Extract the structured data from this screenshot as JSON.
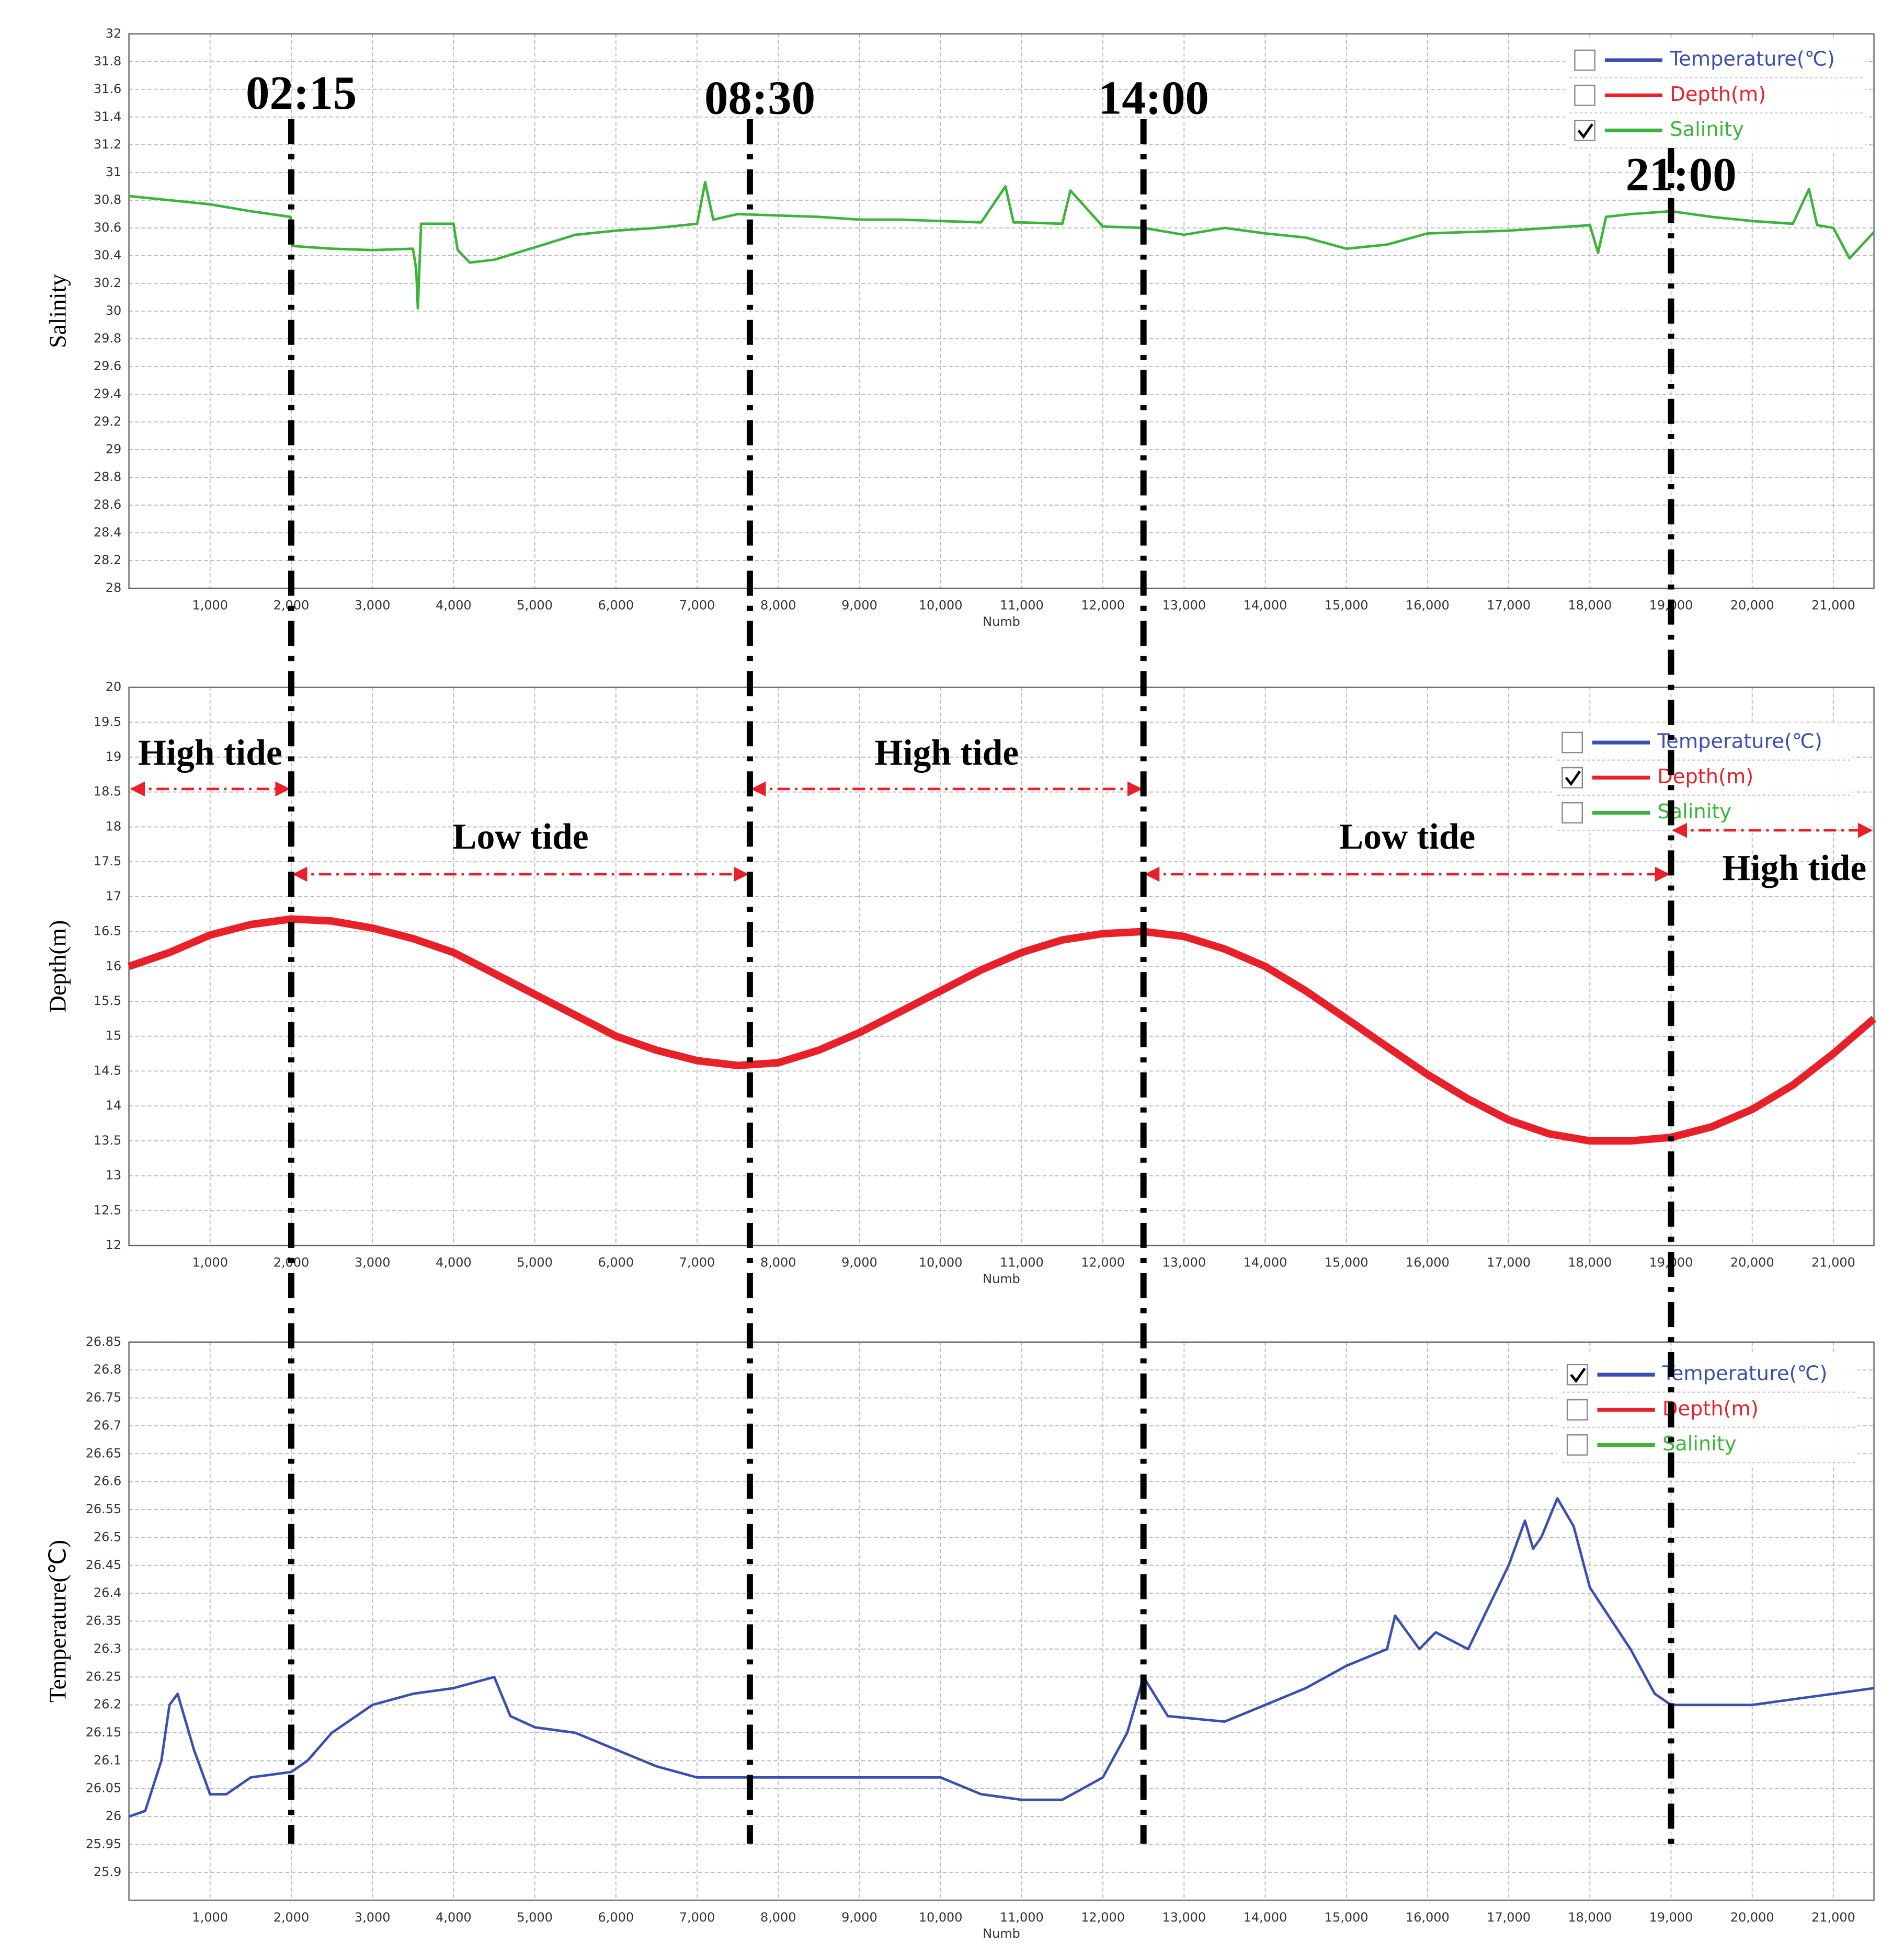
{
  "chart_data": [
    {
      "type": "line",
      "ylabel": "Salinity",
      "xlabel": "Numb",
      "xlim": [
        0,
        21500
      ],
      "ylim": [
        28,
        32
      ],
      "xticks": [
        {
          "value": 1000,
          "label": "1,000"
        },
        {
          "value": 2000,
          "label": "2,000"
        },
        {
          "value": 3000,
          "label": "3,000"
        },
        {
          "value": 4000,
          "label": "4,000"
        },
        {
          "value": 5000,
          "label": "5,000"
        },
        {
          "value": 6000,
          "label": "6,000"
        },
        {
          "value": 7000,
          "label": "7,000"
        },
        {
          "value": 8000,
          "label": "8,000"
        },
        {
          "value": 9000,
          "label": "9,000"
        },
        {
          "value": 10000,
          "label": "10,000"
        },
        {
          "value": 11000,
          "label": "11,000"
        },
        {
          "value": 12000,
          "label": "12,000"
        },
        {
          "value": 13000,
          "label": "13,000"
        },
        {
          "value": 14000,
          "label": "14,000"
        },
        {
          "value": 15000,
          "label": "15,000"
        },
        {
          "value": 16000,
          "label": "16,000"
        },
        {
          "value": 17000,
          "label": "17,000"
        },
        {
          "value": 18000,
          "label": "18,000"
        },
        {
          "value": 19000,
          "label": "19,000"
        },
        {
          "value": 20000,
          "label": "20,000"
        },
        {
          "value": 21000,
          "label": "21,000"
        }
      ],
      "yticks": [
        28,
        28.2,
        28.4,
        28.6,
        28.8,
        29,
        29.2,
        29.4,
        29.6,
        29.8,
        30,
        30.2,
        30.4,
        30.6,
        30.8,
        31,
        31.2,
        31.4,
        31.6,
        31.8,
        32
      ],
      "grid": true,
      "legend_position": "upper right",
      "legend": [
        {
          "label": "Temperature(℃)",
          "color": "#3a4fb0",
          "checked": false
        },
        {
          "label": "Depth(m)",
          "color": "#e8202a",
          "checked": false
        },
        {
          "label": "Salinity",
          "color": "#3cb43c",
          "checked": true
        }
      ],
      "x": [
        0,
        500,
        1000,
        1500,
        1990,
        2010,
        2500,
        3000,
        3500,
        3540,
        3560,
        3600,
        4000,
        4050,
        4200,
        4500,
        5000,
        5500,
        6000,
        6500,
        7000,
        7100,
        7200,
        7500,
        8000,
        8500,
        9000,
        9500,
        10000,
        10500,
        10800,
        10900,
        11000,
        11500,
        11600,
        12000,
        12500,
        13000,
        13500,
        14000,
        14500,
        15000,
        15500,
        16000,
        16500,
        17000,
        17500,
        18000,
        18100,
        18200,
        18500,
        19000,
        19500,
        20000,
        20500,
        20700,
        20800,
        21000,
        21200,
        21500
      ],
      "series": [
        {
          "color": "#3cb43c",
          "values": [
            30.83,
            30.8,
            30.77,
            30.72,
            30.68,
            30.47,
            30.45,
            30.44,
            30.45,
            30.3,
            30.02,
            30.63,
            30.63,
            30.44,
            30.35,
            30.37,
            30.46,
            30.55,
            30.58,
            30.6,
            30.63,
            30.93,
            30.66,
            30.7,
            30.69,
            30.68,
            30.66,
            30.66,
            30.65,
            30.64,
            30.9,
            30.64,
            30.64,
            30.63,
            30.87,
            30.61,
            30.6,
            30.55,
            30.6,
            30.56,
            30.53,
            30.45,
            30.48,
            30.56,
            30.57,
            30.58,
            30.6,
            30.62,
            30.42,
            30.68,
            30.7,
            30.72,
            30.68,
            30.65,
            30.63,
            30.88,
            30.62,
            30.6,
            30.38,
            30.57
          ]
        }
      ]
    },
    {
      "type": "line",
      "ylabel": "Depth(m)",
      "xlabel": "Numb",
      "xlim": [
        0,
        21500
      ],
      "ylim": [
        12,
        20
      ],
      "xticks": [
        {
          "value": 1000,
          "label": "1,000"
        },
        {
          "value": 2000,
          "label": "2,000"
        },
        {
          "value": 3000,
          "label": "3,000"
        },
        {
          "value": 4000,
          "label": "4,000"
        },
        {
          "value": 5000,
          "label": "5,000"
        },
        {
          "value": 6000,
          "label": "6,000"
        },
        {
          "value": 7000,
          "label": "7,000"
        },
        {
          "value": 8000,
          "label": "8,000"
        },
        {
          "value": 9000,
          "label": "9,000"
        },
        {
          "value": 10000,
          "label": "10,000"
        },
        {
          "value": 11000,
          "label": "11,000"
        },
        {
          "value": 12000,
          "label": "12,000"
        },
        {
          "value": 13000,
          "label": "13,000"
        },
        {
          "value": 14000,
          "label": "14,000"
        },
        {
          "value": 15000,
          "label": "15,000"
        },
        {
          "value": 16000,
          "label": "16,000"
        },
        {
          "value": 17000,
          "label": "17,000"
        },
        {
          "value": 18000,
          "label": "18,000"
        },
        {
          "value": 19000,
          "label": "19,000"
        },
        {
          "value": 20000,
          "label": "20,000"
        },
        {
          "value": 21000,
          "label": "21,000"
        }
      ],
      "yticks": [
        12,
        12.5,
        13,
        13.5,
        14,
        14.5,
        15,
        15.5,
        16,
        16.5,
        17,
        17.5,
        18,
        18.5,
        19,
        19.5,
        20
      ],
      "grid": true,
      "legend_position": "upper right",
      "legend": [
        {
          "label": "Temperature(℃)",
          "color": "#3a4fb0",
          "checked": false
        },
        {
          "label": "Depth(m)",
          "color": "#e8202a",
          "checked": true
        },
        {
          "label": "Salinity",
          "color": "#3cb43c",
          "checked": false
        }
      ],
      "annotations": [
        {
          "text": "High tide",
          "x_from": 0,
          "x_to": 2000
        },
        {
          "text": "Low tide",
          "x_from": 2000,
          "x_to": 7650
        },
        {
          "text": "High tide",
          "x_from": 7650,
          "x_to": 12500
        },
        {
          "text": "Low tide",
          "x_from": 12500,
          "x_to": 19000
        },
        {
          "text": "High tide",
          "x_from": 19000,
          "x_to": 21500
        }
      ],
      "x": [
        0,
        500,
        1000,
        1500,
        2000,
        2500,
        3000,
        3500,
        4000,
        4500,
        5000,
        5500,
        6000,
        6500,
        7000,
        7500,
        8000,
        8500,
        9000,
        9500,
        10000,
        10500,
        11000,
        11500,
        12000,
        12500,
        13000,
        13500,
        14000,
        14500,
        15000,
        15500,
        16000,
        16500,
        17000,
        17500,
        18000,
        18500,
        19000,
        19500,
        20000,
        20500,
        21000,
        21500
      ],
      "series": [
        {
          "color": "#e8202a",
          "values": [
            16.0,
            16.2,
            16.45,
            16.6,
            16.68,
            16.65,
            16.55,
            16.4,
            16.2,
            15.9,
            15.6,
            15.3,
            15.0,
            14.8,
            14.65,
            14.58,
            14.62,
            14.8,
            15.05,
            15.35,
            15.65,
            15.95,
            16.2,
            16.38,
            16.47,
            16.5,
            16.43,
            16.25,
            16.0,
            15.65,
            15.25,
            14.85,
            14.45,
            14.1,
            13.8,
            13.6,
            13.5,
            13.5,
            13.55,
            13.7,
            13.95,
            14.3,
            14.75,
            15.25
          ]
        }
      ]
    },
    {
      "type": "line",
      "ylabel": "Temperature(℃)",
      "xlabel": "Numb",
      "xlim": [
        0,
        21500
      ],
      "ylim": [
        25.85,
        26.85
      ],
      "xticks": [
        {
          "value": 1000,
          "label": "1,000"
        },
        {
          "value": 2000,
          "label": "2,000"
        },
        {
          "value": 3000,
          "label": "3,000"
        },
        {
          "value": 4000,
          "label": "4,000"
        },
        {
          "value": 5000,
          "label": "5,000"
        },
        {
          "value": 6000,
          "label": "6,000"
        },
        {
          "value": 7000,
          "label": "7,000"
        },
        {
          "value": 8000,
          "label": "8,000"
        },
        {
          "value": 9000,
          "label": "9,000"
        },
        {
          "value": 10000,
          "label": "10,000"
        },
        {
          "value": 11000,
          "label": "11,000"
        },
        {
          "value": 12000,
          "label": "12,000"
        },
        {
          "value": 13000,
          "label": "13,000"
        },
        {
          "value": 14000,
          "label": "14,000"
        },
        {
          "value": 15000,
          "label": "15,000"
        },
        {
          "value": 16000,
          "label": "16,000"
        },
        {
          "value": 17000,
          "label": "17,000"
        },
        {
          "value": 18000,
          "label": "18,000"
        },
        {
          "value": 19000,
          "label": "19,000"
        },
        {
          "value": 20000,
          "label": "20,000"
        },
        {
          "value": 21000,
          "label": "21,000"
        }
      ],
      "yticks": [
        25.9,
        25.95,
        26,
        26.05,
        26.1,
        26.15,
        26.2,
        26.25,
        26.3,
        26.35,
        26.4,
        26.45,
        26.5,
        26.55,
        26.6,
        26.65,
        26.7,
        26.75,
        26.8,
        26.85
      ],
      "grid": true,
      "legend_position": "upper right",
      "legend": [
        {
          "label": "Temperature(℃)",
          "color": "#3a4fb0",
          "checked": true
        },
        {
          "label": "Depth(m)",
          "color": "#e8202a",
          "checked": false
        },
        {
          "label": "Salinity",
          "color": "#3cb43c",
          "checked": false
        }
      ],
      "x": [
        0,
        200,
        400,
        500,
        600,
        800,
        1000,
        1200,
        1500,
        2000,
        2200,
        2500,
        3000,
        3500,
        4000,
        4500,
        4700,
        5000,
        5500,
        6000,
        6500,
        7000,
        8000,
        9000,
        10000,
        10500,
        11000,
        11500,
        12000,
        12300,
        12500,
        12800,
        13500,
        14000,
        14500,
        15000,
        15500,
        15600,
        15900,
        16100,
        16500,
        17000,
        17200,
        17300,
        17400,
        17600,
        17800,
        18000,
        18500,
        18800,
        19000,
        20000,
        20500,
        21000,
        21500
      ],
      "series": [
        {
          "color": "#3a4fb0",
          "values": [
            26.0,
            26.01,
            26.1,
            26.2,
            26.22,
            26.12,
            26.04,
            26.04,
            26.07,
            26.08,
            26.1,
            26.15,
            26.2,
            26.22,
            26.23,
            26.25,
            26.18,
            26.16,
            26.15,
            26.12,
            26.09,
            26.07,
            26.07,
            26.07,
            26.07,
            26.04,
            26.03,
            26.03,
            26.07,
            26.15,
            26.25,
            26.18,
            26.17,
            26.2,
            26.23,
            26.27,
            26.3,
            26.36,
            26.3,
            26.33,
            26.3,
            26.45,
            26.53,
            26.48,
            26.5,
            26.57,
            26.52,
            26.41,
            26.3,
            26.22,
            26.2,
            26.2,
            26.21,
            26.22,
            26.23
          ]
        }
      ]
    }
  ],
  "time_markers": [
    {
      "label": "02:15",
      "x": 2000
    },
    {
      "label": "08:30",
      "x": 7650
    },
    {
      "label": "14:00",
      "x": 12500
    },
    {
      "label": "21:00",
      "x": 19000
    }
  ]
}
